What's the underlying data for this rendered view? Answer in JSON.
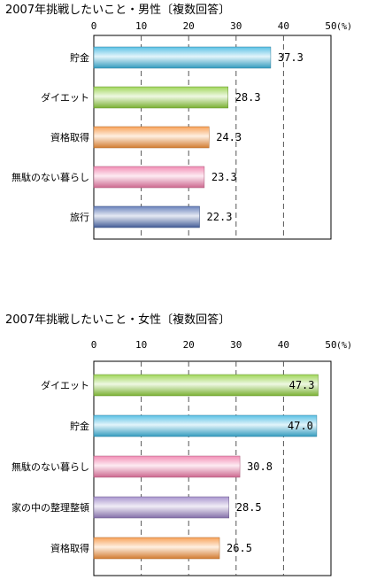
{
  "chart_data": [
    {
      "type": "bar",
      "orientation": "horizontal",
      "title": "2007年挑戦したいこと・男性〔複数回答〕",
      "unit": "(%)",
      "categories": [
        "貯金",
        "ダイエット",
        "資格取得",
        "無駄のない暮らし",
        "旅行"
      ],
      "values": [
        37.3,
        28.3,
        24.3,
        23.3,
        22.3
      ],
      "value_labels": [
        "37.3",
        "28.3",
        "24.3",
        "23.3",
        "22.3"
      ],
      "bar_colors": [
        "#3db6e0",
        "#8fcf3c",
        "#f7923a",
        "#f07aa8",
        "#4f6cb0"
      ],
      "xlim": [
        0,
        50
      ],
      "xticks": [
        "0",
        "10",
        "20",
        "30",
        "40",
        "50"
      ],
      "grid": "dashed vertical"
    },
    {
      "type": "bar",
      "orientation": "horizontal",
      "title": "2007年挑戦したいこと・女性〔複数回答〕",
      "unit": "(%)",
      "categories": [
        "ダイエット",
        "貯金",
        "無駄のない暮らし",
        "家の中の整理整頓",
        "資格取得"
      ],
      "values": [
        47.3,
        47.0,
        30.8,
        28.5,
        26.5
      ],
      "value_labels": [
        "47.3",
        "47.0",
        "30.8",
        "28.5",
        "26.5"
      ],
      "bar_colors": [
        "#8fcf3c",
        "#3db6e0",
        "#f07aa8",
        "#9a82c6",
        "#f7923a"
      ],
      "xlim": [
        0,
        50
      ],
      "xticks": [
        "0",
        "10",
        "20",
        "30",
        "40",
        "50"
      ],
      "grid": "dashed vertical"
    }
  ]
}
